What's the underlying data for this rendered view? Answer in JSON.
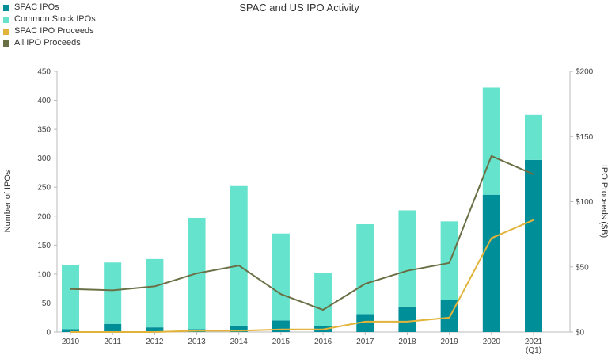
{
  "chart_data": {
    "type": "bar",
    "title": "SPAC and US IPO Activity",
    "ylabel": "Number of IPOs",
    "y2label": "IPO Proceeds ($B)",
    "categories": [
      "2010",
      "2011",
      "2012",
      "2013",
      "2014",
      "2015",
      "2016",
      "2017",
      "2018",
      "2019",
      "2020",
      "2021"
    ],
    "category_sublabels": [
      "",
      "",
      "",
      "",
      "",
      "",
      "",
      "",
      "",
      "",
      "",
      "(Q1)"
    ],
    "ylim": [
      0,
      450
    ],
    "y_ticks": [
      0,
      50,
      100,
      150,
      200,
      250,
      300,
      350,
      400,
      450
    ],
    "y2lim": [
      0,
      200
    ],
    "y2_ticks": [
      0,
      50,
      100,
      150,
      200
    ],
    "y2_tick_labels": [
      "$0",
      "$50",
      "$100",
      "$150",
      "$200"
    ],
    "legend_position": "top-left",
    "grid": false,
    "series": [
      {
        "name": "SPAC IPOs",
        "kind": "bar-stack",
        "axis": "left",
        "color": "#008e98",
        "values": [
          5,
          14,
          8,
          5,
          11,
          20,
          10,
          31,
          44,
          55,
          237,
          297
        ]
      },
      {
        "name": "Common Stock IPOs",
        "kind": "bar-stack",
        "axis": "left",
        "color": "#65e3cd",
        "values": [
          110,
          106,
          118,
          192,
          241,
          150,
          92,
          155,
          166,
          136,
          185,
          78
        ]
      },
      {
        "name": "SPAC IPO Proceeds",
        "kind": "line",
        "axis": "right",
        "color": "#e2b33a",
        "values": [
          0,
          0,
          0,
          1,
          1,
          2,
          2,
          8,
          8,
          11,
          72,
          86
        ]
      },
      {
        "name": "All IPO Proceeds",
        "kind": "line",
        "axis": "right",
        "color": "#6b6f45",
        "values": [
          33,
          32,
          35,
          45,
          51,
          29,
          17,
          37,
          47,
          53,
          135,
          121
        ]
      }
    ]
  }
}
